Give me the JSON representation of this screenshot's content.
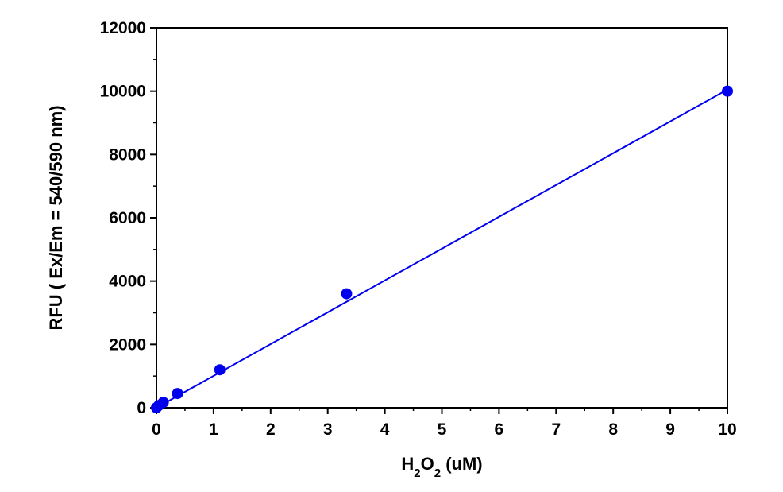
{
  "chart_data": {
    "type": "scatter",
    "xlabel_main": "H",
    "xlabel_sub1": "2",
    "xlabel_mid": "O",
    "xlabel_sub2": "2",
    "xlabel_tail": " (uM)",
    "ylabel": "RFU ( Ex/Em = 540/590 nm)",
    "xlim": [
      0,
      10
    ],
    "ylim": [
      0,
      12000
    ],
    "x_ticks": [
      0,
      1,
      2,
      3,
      4,
      5,
      6,
      7,
      8,
      9,
      10
    ],
    "y_ticks": [
      0,
      2000,
      4000,
      6000,
      8000,
      10000,
      12000
    ],
    "grid": false,
    "series": [
      {
        "marker_color": "#0000ee",
        "points": [
          {
            "x": 0.0,
            "y": 0
          },
          {
            "x": 0.04,
            "y": 70
          },
          {
            "x": 0.12,
            "y": 170
          },
          {
            "x": 0.37,
            "y": 450
          },
          {
            "x": 1.11,
            "y": 1200
          },
          {
            "x": 3.33,
            "y": 3600
          },
          {
            "x": 10.0,
            "y": 10000
          }
        ],
        "fit_line": {
          "x": [
            0,
            10
          ],
          "y": [
            0,
            10050
          ]
        }
      }
    ]
  }
}
